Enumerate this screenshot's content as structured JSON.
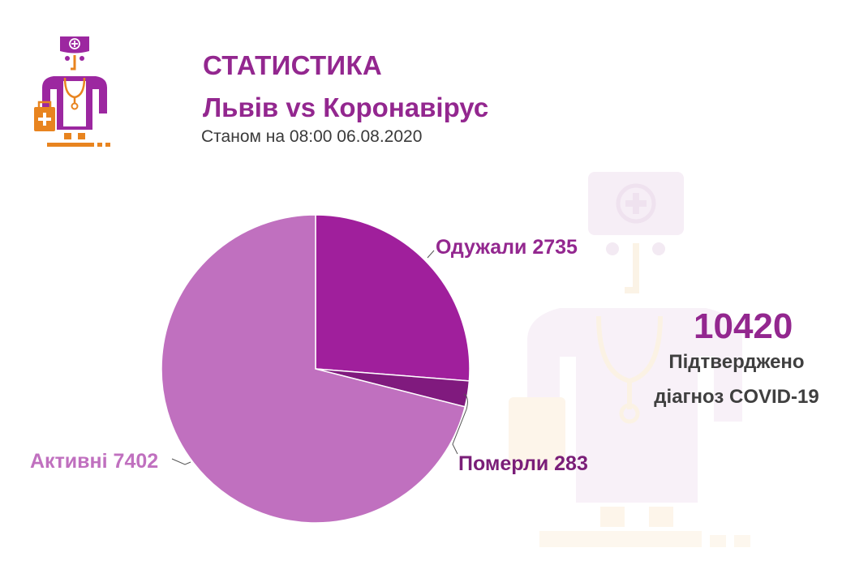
{
  "header": {
    "title": "СТАТИСТИКА",
    "subtitle": "Львів vs Коронавірус",
    "as_of": "Станом на 08:00 06.08.2020",
    "logo_icon": "doctor-icon"
  },
  "summary": {
    "total": "10420",
    "caption_line1": "Підтверджено",
    "caption_line2": "діагноз COVID-19"
  },
  "colors": {
    "title": "#93278f",
    "recovered": "#a01f9c",
    "deaths": "#801a7e",
    "active": "#c070bf",
    "accent_orange": "#e8841f"
  },
  "labels": {
    "recovered": "Одужали 2735",
    "deaths": "Померли 283",
    "active": "Активні 7402"
  },
  "chart_data": {
    "type": "pie",
    "title": "СТАТИСТИКА Львів vs Коронавірус",
    "subtitle": "Станом на 08:00 06.08.2020",
    "categories": [
      "Одужали",
      "Померли",
      "Активні"
    ],
    "values": [
      2735,
      283,
      7402
    ],
    "total": 10420,
    "colors": [
      "#a01f9c",
      "#801a7e",
      "#c070bf"
    ],
    "start_angle": "12 o'clock, clockwise",
    "legend": "none (data labels outside slices)"
  }
}
